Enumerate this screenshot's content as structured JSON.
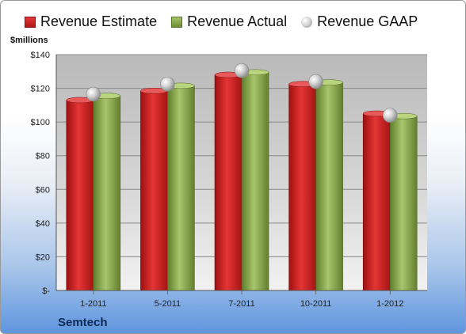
{
  "chart_data": {
    "type": "bar",
    "categories": [
      "1-2011",
      "5-2011",
      "7-2011",
      "10-2011",
      "1-2012"
    ],
    "series": [
      {
        "name": "Revenue Estimate",
        "type": "bar",
        "color": "#c81e1e",
        "values": [
          113,
          118.5,
          128,
          122.5,
          105
        ]
      },
      {
        "name": "Revenue Actual",
        "type": "bar",
        "color": "#8fae53",
        "values": [
          115.5,
          121.5,
          129.5,
          123.5,
          103.5
        ]
      },
      {
        "name": "Revenue GAAP",
        "type": "scatter",
        "color": "#b8b8b8",
        "values": [
          116.5,
          122.5,
          130.5,
          124,
          104
        ]
      }
    ],
    "ylabel": "$millions",
    "ylim": [
      0,
      140
    ],
    "yticks": [
      0,
      20,
      40,
      60,
      80,
      100,
      120,
      140
    ],
    "ytick_labels": [
      "$-",
      "$20",
      "$40",
      "$60",
      "$80",
      "$100",
      "$120",
      "$140"
    ],
    "grid": true,
    "legend_position": "top"
  },
  "legend": {
    "estimate": "Revenue Estimate",
    "actual": "Revenue Actual",
    "gaap": "Revenue GAAP"
  },
  "company": "Semtech"
}
